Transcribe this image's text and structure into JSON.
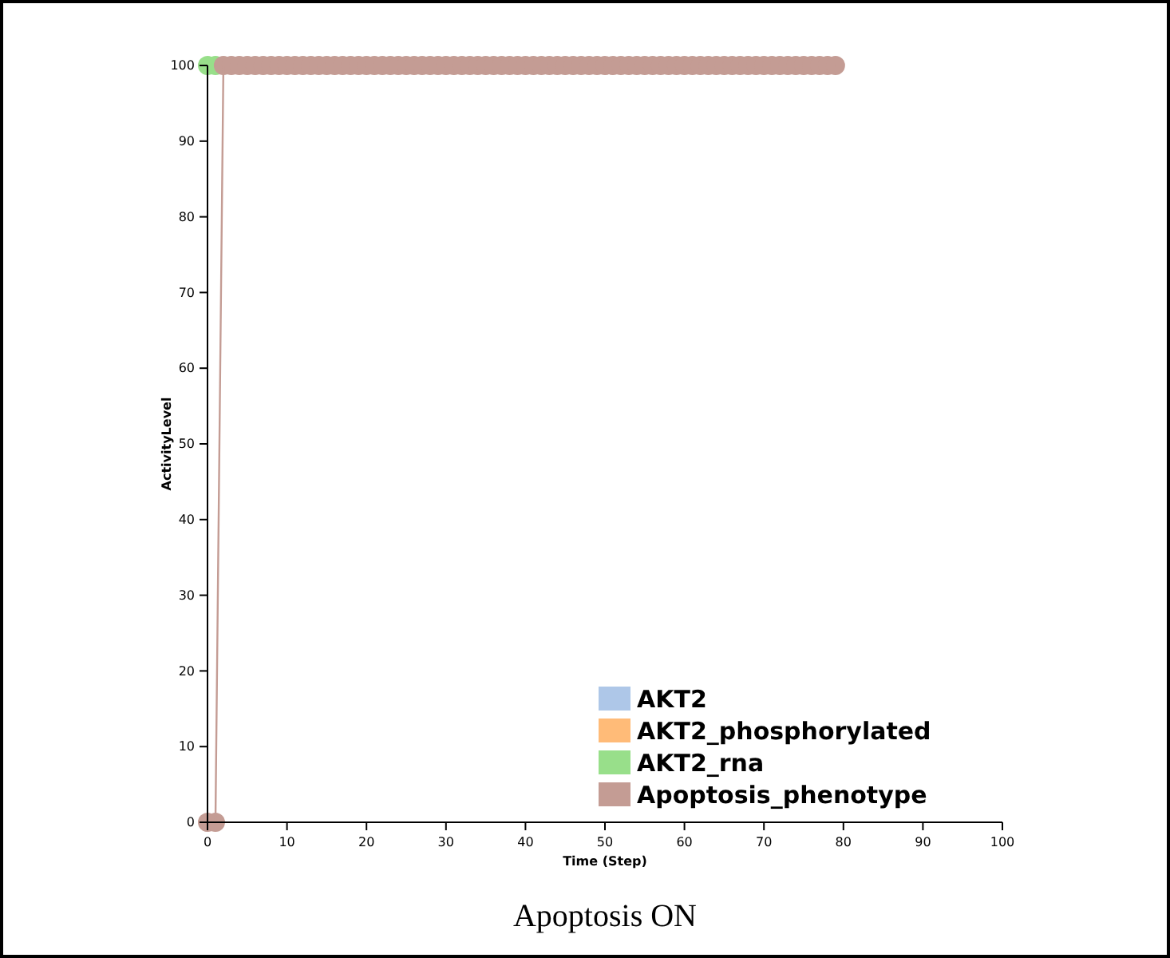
{
  "chart_data": {
    "type": "line",
    "title": "Apoptosis ON",
    "xlabel": "Time (Step)",
    "ylabel": "ActivityLevel",
    "x": [
      0,
      1,
      2,
      3,
      4,
      5,
      6,
      7,
      8,
      9,
      10,
      11,
      12,
      13,
      14,
      15,
      16,
      17,
      18,
      19,
      20,
      21,
      22,
      23,
      24,
      25,
      26,
      27,
      28,
      29,
      30,
      31,
      32,
      33,
      34,
      35,
      36,
      37,
      38,
      39,
      40,
      41,
      42,
      43,
      44,
      45,
      46,
      47,
      48,
      49,
      50,
      51,
      52,
      53,
      54,
      55,
      56,
      57,
      58,
      59,
      60,
      61,
      62,
      63,
      64,
      65,
      66,
      67,
      68,
      69,
      70,
      71,
      72,
      73,
      74,
      75,
      76,
      77,
      78,
      79
    ],
    "xlim": [
      0,
      100
    ],
    "xticks": [
      0,
      10,
      20,
      30,
      40,
      50,
      60,
      70,
      80,
      90,
      100
    ],
    "ylim": [
      0,
      100
    ],
    "yticks": [
      0,
      10,
      20,
      30,
      40,
      50,
      60,
      70,
      80,
      90,
      100
    ],
    "marker": "circle",
    "legend": "bottom right",
    "grid": false,
    "series": [
      {
        "name": "AKT2",
        "color": "#aec7e8",
        "values": [
          null,
          null,
          null,
          null,
          null,
          null,
          null,
          null,
          null,
          null,
          null,
          null,
          null,
          null,
          null,
          null,
          null,
          null,
          null,
          null,
          null,
          null,
          null,
          null,
          null,
          null,
          null,
          null,
          null,
          null,
          null,
          null,
          null,
          null,
          null,
          null,
          null,
          null,
          null,
          null,
          null,
          null,
          null,
          null,
          null,
          null,
          null,
          null,
          null,
          null,
          null,
          null,
          null,
          null,
          null,
          null,
          null,
          null,
          null,
          null,
          null,
          null,
          null,
          null,
          null,
          null,
          null,
          null,
          null,
          null,
          null,
          null,
          null,
          null,
          null,
          null,
          null,
          null,
          null,
          null
        ]
      },
      {
        "name": "AKT2_phosphorylated",
        "color": "#ffbb78",
        "values": [
          null,
          null,
          null,
          null,
          null,
          null,
          null,
          null,
          null,
          null,
          null,
          null,
          null,
          null,
          null,
          null,
          null,
          null,
          null,
          null,
          null,
          null,
          null,
          null,
          null,
          null,
          null,
          null,
          null,
          null,
          null,
          null,
          null,
          null,
          null,
          null,
          null,
          null,
          null,
          null,
          null,
          null,
          null,
          null,
          null,
          null,
          null,
          null,
          null,
          null,
          null,
          null,
          null,
          null,
          null,
          null,
          null,
          null,
          null,
          null,
          null,
          null,
          null,
          null,
          null,
          null,
          null,
          null,
          null,
          null,
          null,
          null,
          null,
          null,
          null,
          null,
          null,
          null,
          null,
          null
        ]
      },
      {
        "name": "AKT2_rna",
        "type": "scatter",
        "color": "#98df8a",
        "values": [
          100,
          100,
          null,
          null,
          null,
          null,
          null,
          null,
          null,
          null,
          null,
          null,
          null,
          null,
          null,
          null,
          null,
          null,
          null,
          null,
          null,
          null,
          null,
          null,
          null,
          null,
          null,
          null,
          null,
          null,
          null,
          null,
          null,
          null,
          null,
          null,
          null,
          null,
          null,
          null,
          null,
          null,
          null,
          null,
          null,
          null,
          null,
          null,
          null,
          null,
          null,
          null,
          null,
          null,
          null,
          null,
          null,
          null,
          null,
          null,
          null,
          null,
          null,
          null,
          null,
          null,
          null,
          null,
          null,
          null,
          null,
          null,
          null,
          null,
          null,
          null,
          null,
          null,
          null,
          null
        ]
      },
      {
        "name": "Apoptosis_phenotype",
        "color": "#c49c94",
        "values": [
          0,
          0,
          100,
          100,
          100,
          100,
          100,
          100,
          100,
          100,
          100,
          100,
          100,
          100,
          100,
          100,
          100,
          100,
          100,
          100,
          100,
          100,
          100,
          100,
          100,
          100,
          100,
          100,
          100,
          100,
          100,
          100,
          100,
          100,
          100,
          100,
          100,
          100,
          100,
          100,
          100,
          100,
          100,
          100,
          100,
          100,
          100,
          100,
          100,
          100,
          100,
          100,
          100,
          100,
          100,
          100,
          100,
          100,
          100,
          100,
          100,
          100,
          100,
          100,
          100,
          100,
          100,
          100,
          100,
          100,
          100,
          100,
          100,
          100,
          100,
          100,
          100,
          100,
          100,
          100
        ]
      }
    ]
  }
}
